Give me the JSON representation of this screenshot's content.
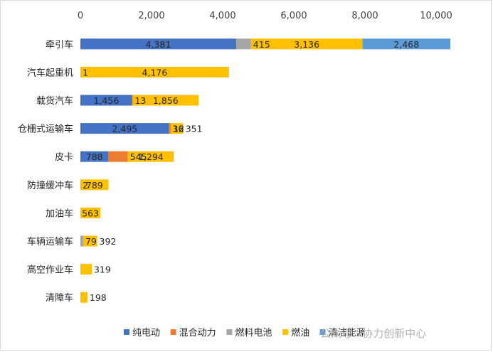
{
  "chart_data": {
    "type": "bar",
    "orientation": "horizontal",
    "stacked": true,
    "title": "",
    "xlabel": "",
    "ylabel": "",
    "xlim": [
      0,
      10000
    ],
    "x_ticks": [
      "0",
      "2,000",
      "4,000",
      "6,000",
      "8,000",
      "10,000"
    ],
    "x_axis_position": "top",
    "grid": false,
    "legend_position": "bottom",
    "categories": [
      "牵引车",
      "汽车起重机",
      "载货汽车",
      "仓栅式运输车",
      "皮卡",
      "防撞缓冲车",
      "加油车",
      "车辆运输车",
      "高空作业车",
      "清障车"
    ],
    "series": [
      {
        "name": "纯电动",
        "color": "#4472c4",
        "values": [
          4381,
          0,
          1456,
          2495,
          788,
          0,
          0,
          0,
          0,
          0
        ]
      },
      {
        "name": "混合动力",
        "color": "#ed7d31",
        "values": [
          0,
          1,
          13,
          36,
          545,
          2,
          0,
          0,
          0,
          0
        ]
      },
      {
        "name": "燃料电池",
        "color": "#a5a5a5",
        "values": [
          415,
          0,
          0,
          12,
          0,
          0,
          0,
          79,
          0,
          0
        ]
      },
      {
        "name": "燃油",
        "color": "#ffc000",
        "values": [
          3136,
          4176,
          1856,
          351,
          1294,
          789,
          563,
          392,
          319,
          198
        ]
      },
      {
        "name": "清洁能源",
        "color": "#5b9bd5",
        "values": [
          2468,
          0,
          0,
          0,
          0,
          0,
          0,
          0,
          0,
          0
        ]
      }
    ],
    "data_labels": [
      [
        "4,381",
        "",
        "415",
        "3,136",
        "2,468"
      ],
      [
        "",
        "1",
        "",
        "4,176",
        ""
      ],
      [
        "1,456",
        "13",
        "",
        "1,856",
        ""
      ],
      [
        "2,495",
        "36",
        "12",
        "351",
        ""
      ],
      [
        "788",
        "545",
        "",
        "1,294",
        ""
      ],
      [
        "",
        "2",
        "",
        "789",
        ""
      ],
      [
        "",
        "",
        "",
        "563",
        ""
      ],
      [
        "",
        "",
        "79",
        "392",
        ""
      ],
      [
        "",
        "",
        "",
        "319",
        ""
      ],
      [
        "",
        "",
        "",
        "198",
        ""
      ]
    ]
  },
  "watermark": "公众号 · 协力创新中心"
}
